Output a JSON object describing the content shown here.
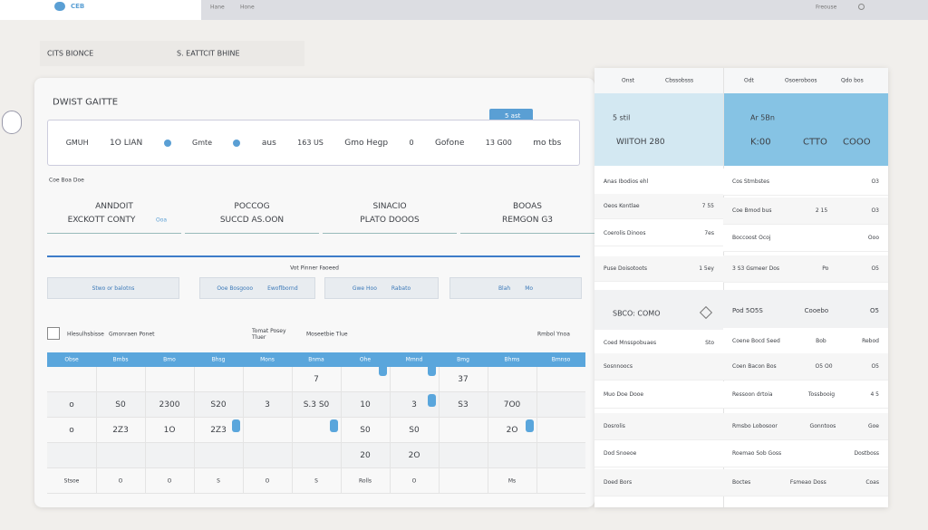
{
  "topbar": {
    "brand": "CEB",
    "links": [
      "Hane",
      "Hone"
    ],
    "right": "Freouse"
  },
  "breadcrumb": {
    "left": "CITS BIONCE",
    "right": "S. EATTCIT BHINE"
  },
  "main": {
    "title": "DWIST GAITTE",
    "button": "5 ast",
    "search": [
      "GMUH",
      "1O LIAN",
      "Gmte",
      "aus",
      "163 US",
      "Gmo Hegp",
      "0",
      "Gofone",
      "13 G00",
      "mo tbs"
    ],
    "caption": "Coe Boa Doe",
    "tabs": [
      {
        "top": "ANNDOIT",
        "bottom": "EXCKOTT CONTY",
        "tag": "Ooa"
      },
      {
        "top": "POCCOG",
        "bottom": "SUCCD AS.OON"
      },
      {
        "top": "SINACIO",
        "bottom": "PLATO DOOOS"
      },
      {
        "top": "BOOAS",
        "bottom": "REMGON G3"
      }
    ],
    "filter_title": "Vot Pinner Faoeed",
    "filters": [
      [
        "Stwo or balotns"
      ],
      [
        "Ooe Bosgooo",
        "Ewoflbornd"
      ],
      [
        "Gwe Hoo",
        "Rabato"
      ],
      [
        "Blah",
        "Mo"
      ]
    ],
    "toolbar": [
      "Hlesulhsbisse",
      "Gmonraen Ponet",
      "Tomat Posey Tluer",
      "Moseetbie Tlue",
      "Rmbol Ynoa"
    ],
    "table": {
      "header": [
        "Obse",
        "Bmbs",
        "Bmo",
        "Bhsg",
        "Mons",
        "Bnma",
        "Ohe",
        "Mmnd",
        "Bmg",
        "Bhms",
        "Bmnso"
      ],
      "rows": [
        [
          null,
          null,
          null,
          null,
          null,
          "7",
          null,
          null,
          "37",
          null,
          null
        ],
        [
          "o",
          "S0",
          "2300",
          "S20",
          "3",
          "S.3 S0",
          "10",
          "3",
          "S3",
          "7O0",
          null
        ],
        [
          "o",
          "2Z3",
          "1O",
          "2Z3",
          null,
          null,
          "S0",
          "S0",
          null,
          "2O",
          null
        ],
        [
          null,
          null,
          null,
          null,
          null,
          null,
          "20",
          "2O",
          null,
          null,
          null
        ],
        [
          "Stsoe",
          "O",
          "O",
          "S",
          "O",
          "S",
          "Rolls",
          "O",
          null,
          "Ms",
          null
        ]
      ]
    }
  },
  "side": {
    "header": [
      "Onst",
      "Cbssobsss",
      "Odt",
      "Osoeroboos",
      "Qdo bos"
    ],
    "hero_a": [
      "5 stil",
      "WIITOH 280"
    ],
    "hero_b": [
      "Ar 5Bn",
      "K:00",
      "CTTO",
      "COOO"
    ],
    "list_a": [
      [
        "Anas Ibodios ehl"
      ],
      [
        "Oeos Kontlae",
        "7 55"
      ],
      [
        "Coerolis Dinoos",
        "7es"
      ],
      [
        "Puse Doisotoots",
        "1 5ey"
      ]
    ],
    "list_b": [
      [
        "Cos Stmbstes",
        "O3"
      ],
      [
        "Coe Bmod bus",
        "2 15",
        "O3"
      ],
      [
        "Boccoost Ocoj",
        "Ooo"
      ],
      [
        "3 S3 Gsmeer Dos",
        "Po",
        "O5"
      ]
    ],
    "section_a": "SBCO: COMO",
    "section_b": [
      "Pod 5O5S",
      "Cooebo",
      "O5"
    ],
    "list_c": [
      [
        "Coed Mnsspobuaes",
        "Sto"
      ],
      [
        "Sosnnoocs"
      ],
      [
        "Muo Doe Dooe"
      ],
      [
        "Dosrolis"
      ],
      [
        "Dod Snoeoe"
      ],
      [
        "Doed Bors"
      ]
    ],
    "list_d": [
      [
        "Coene Bocd Seed",
        "Bob",
        "Rebod"
      ],
      [
        "Coen Bacon Bos",
        "O5 O0",
        "O5"
      ],
      [
        "Ressoon drtoia",
        "Tossbooig",
        "4 5"
      ],
      [
        "Rmsbo Lobosoor",
        "Gonntoos",
        "Goe"
      ],
      [
        "Roemao Sob Goss",
        "Dostboss"
      ],
      [
        "Boctes",
        "Fsmeao Doss",
        "Coas"
      ]
    ]
  }
}
